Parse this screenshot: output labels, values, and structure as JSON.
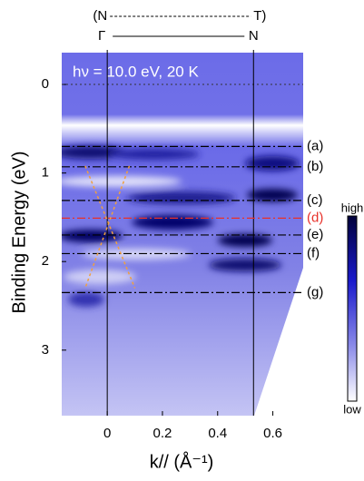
{
  "chart_data": {
    "type": "arpes",
    "title": "hν = 10.0 eV, 20 K",
    "xlabel": "k// (Å⁻¹)",
    "ylabel": "Binding Energy (eV)",
    "xlim": [
      -0.165,
      0.71
    ],
    "xticks": [
      0,
      0.2,
      0.4,
      0.6
    ],
    "ylim": [
      -0.39,
      3.74
    ],
    "yticks": [
      0,
      1,
      2,
      3
    ],
    "fermi_level": 0,
    "kpoints": [
      0,
      0.53
    ],
    "path_labels": {
      "upper": [
        "(N",
        "T)"
      ],
      "lower": [
        "Γ",
        "N"
      ]
    },
    "levels": [
      {
        "name": "(a)",
        "value": 0.7,
        "color": "#000000"
      },
      {
        "name": "(b)",
        "value": 0.93,
        "color": "#000000"
      },
      {
        "name": "(c)",
        "value": 1.31,
        "color": "#000000"
      },
      {
        "name": "(d)",
        "value": 1.51,
        "color": "#e8312a"
      },
      {
        "name": "(e)",
        "value": 1.7,
        "color": "#000000"
      },
      {
        "name": "(f)",
        "value": 1.91,
        "color": "#000000"
      },
      {
        "name": "(g)",
        "value": 2.35,
        "color": "#000000"
      }
    ],
    "guides": {
      "color": "#f0a040",
      "lines": [
        {
          "x": [
            -0.08,
            0.1
          ],
          "y": [
            0.92,
            2.3
          ]
        },
        {
          "x": [
            0.08,
            -0.08
          ],
          "y": [
            0.92,
            2.3
          ]
        }
      ]
    },
    "colorbar": {
      "high": "high",
      "low": "low"
    }
  }
}
